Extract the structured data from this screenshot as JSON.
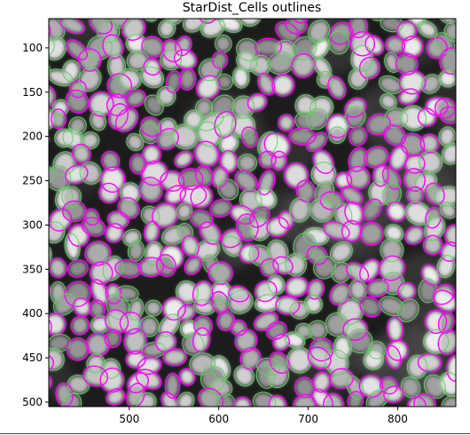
{
  "chart_data": {
    "type": "image",
    "title": "StarDist_Cells outlines",
    "xlabel": "",
    "ylabel": "",
    "xlim": [
      410,
      865
    ],
    "ylim": [
      505,
      67
    ],
    "x_ticks": [
      500,
      600,
      700,
      800
    ],
    "y_ticks": [
      100,
      150,
      200,
      250,
      300,
      350,
      400,
      450,
      500
    ],
    "grid": false,
    "legend": "none",
    "colors": {
      "background": "#1c1c1c",
      "nucleus_fill": "#bdbdbd",
      "outline_primary": "#ff00ff",
      "outline_secondary": "#5fd35f"
    }
  }
}
